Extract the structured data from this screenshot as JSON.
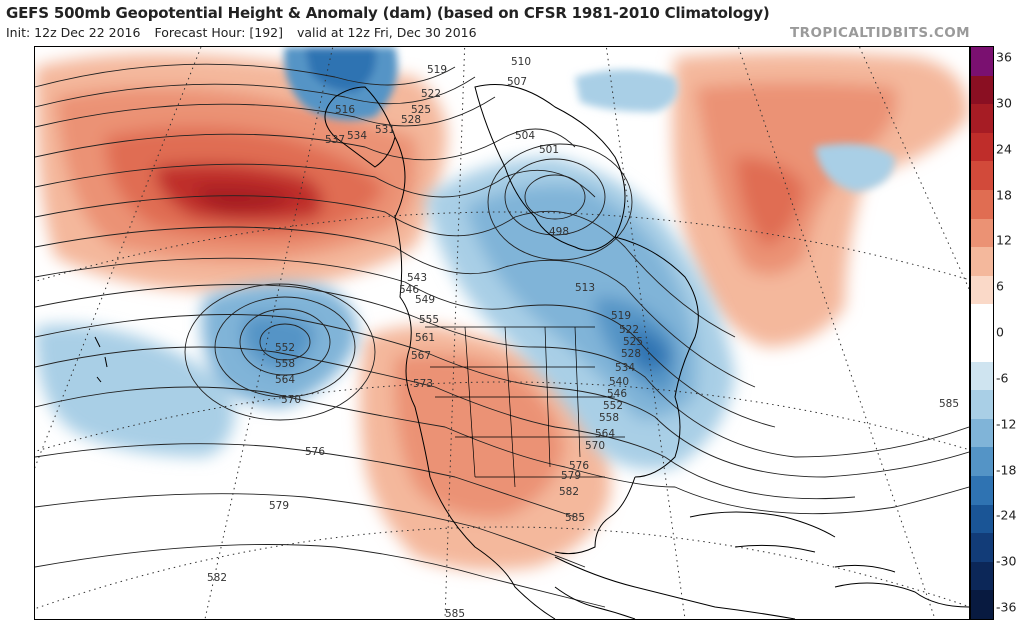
{
  "header": {
    "title": "GEFS 500mb Geopotential Height & Anomaly (dam) (based on CFSR 1981-2010 Climatology)",
    "init": "Init: 12z Dec 22 2016",
    "forecast_hour": "Forecast Hour: [192]",
    "valid": "valid at 12z Fri, Dec 30 2016",
    "brand": "TROPICALTIDBITS.COM"
  },
  "colorbar": {
    "labels": [
      "36",
      "30",
      "24",
      "18",
      "12",
      "6",
      "0",
      "-6",
      "-12",
      "-18",
      "-24",
      "-30",
      "-36"
    ],
    "colors": [
      "#7a1070",
      "#8a0f22",
      "#a61c24",
      "#bf2d2a",
      "#d24a3a",
      "#e06d52",
      "#eb9274",
      "#f4b89c",
      "#fad9c8",
      "#ffffff",
      "#ffffff",
      "#cfe4f0",
      "#a9cfe6",
      "#80b4d8",
      "#5494c6",
      "#2f73b2",
      "#1a5596",
      "#123c78",
      "#0c2758",
      "#081a40"
    ]
  },
  "contour_labels": [
    "510",
    "507",
    "519",
    "522",
    "525",
    "528",
    "531",
    "534",
    "537",
    "516",
    "504",
    "501",
    "498",
    "513",
    "519",
    "522",
    "525",
    "528",
    "534",
    "540",
    "546",
    "552",
    "558",
    "564",
    "570",
    "576",
    "579",
    "582",
    "585",
    "543",
    "546",
    "549",
    "555",
    "561",
    "567",
    "573",
    "552",
    "558",
    "564",
    "570",
    "576",
    "579",
    "582",
    "585",
    "585"
  ],
  "map": {
    "anomaly_colors": {
      "warm": "#e06d52",
      "cold": "#5494c6"
    }
  }
}
